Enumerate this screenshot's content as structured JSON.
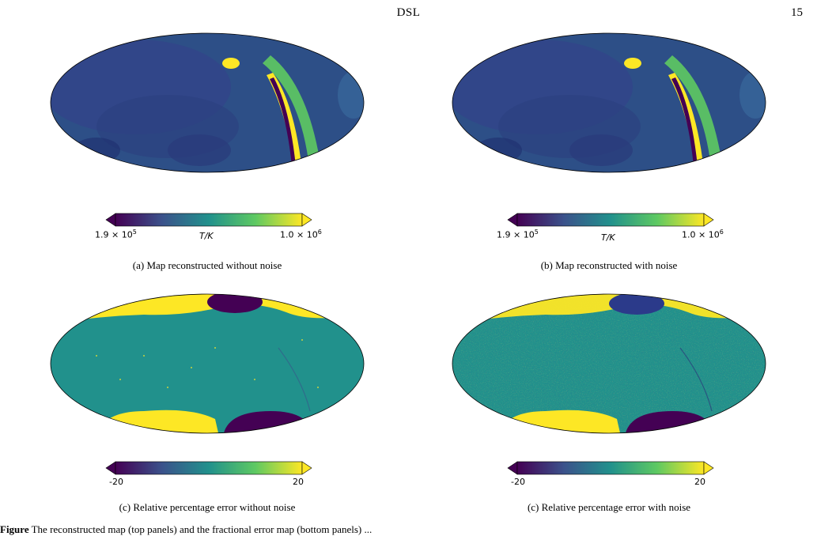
{
  "header": {
    "running_title": "DSL",
    "page_number": "15"
  },
  "panels": [
    {
      "caption": "(a) Map reconstructed without noise",
      "cbar_min": "1.9 × 10",
      "cbar_min_exp": "5",
      "cbar_max": "1.0 × 10",
      "cbar_max_exp": "6",
      "cbar_unit": "T/K"
    },
    {
      "caption": "(b) Map reconstructed with noise",
      "cbar_min": "1.9 × 10",
      "cbar_min_exp": "5",
      "cbar_max": "1.0 × 10",
      "cbar_max_exp": "6",
      "cbar_unit": "T/K"
    },
    {
      "caption": "(c) Relative percentage error without noise",
      "cbar_min": "-20",
      "cbar_max": "20"
    },
    {
      "caption": "(c) Relative percentage error with noise",
      "cbar_min": "-20",
      "cbar_max": "20"
    }
  ],
  "figure_caption": {
    "label": "Figure",
    "text": "The reconstructed map (top panels) and the fractional error map (bottom panels) ... "
  },
  "colors": {
    "viridis_dark": "#440154",
    "viridis_mid": "#21918c",
    "viridis_bright": "#fde725"
  }
}
